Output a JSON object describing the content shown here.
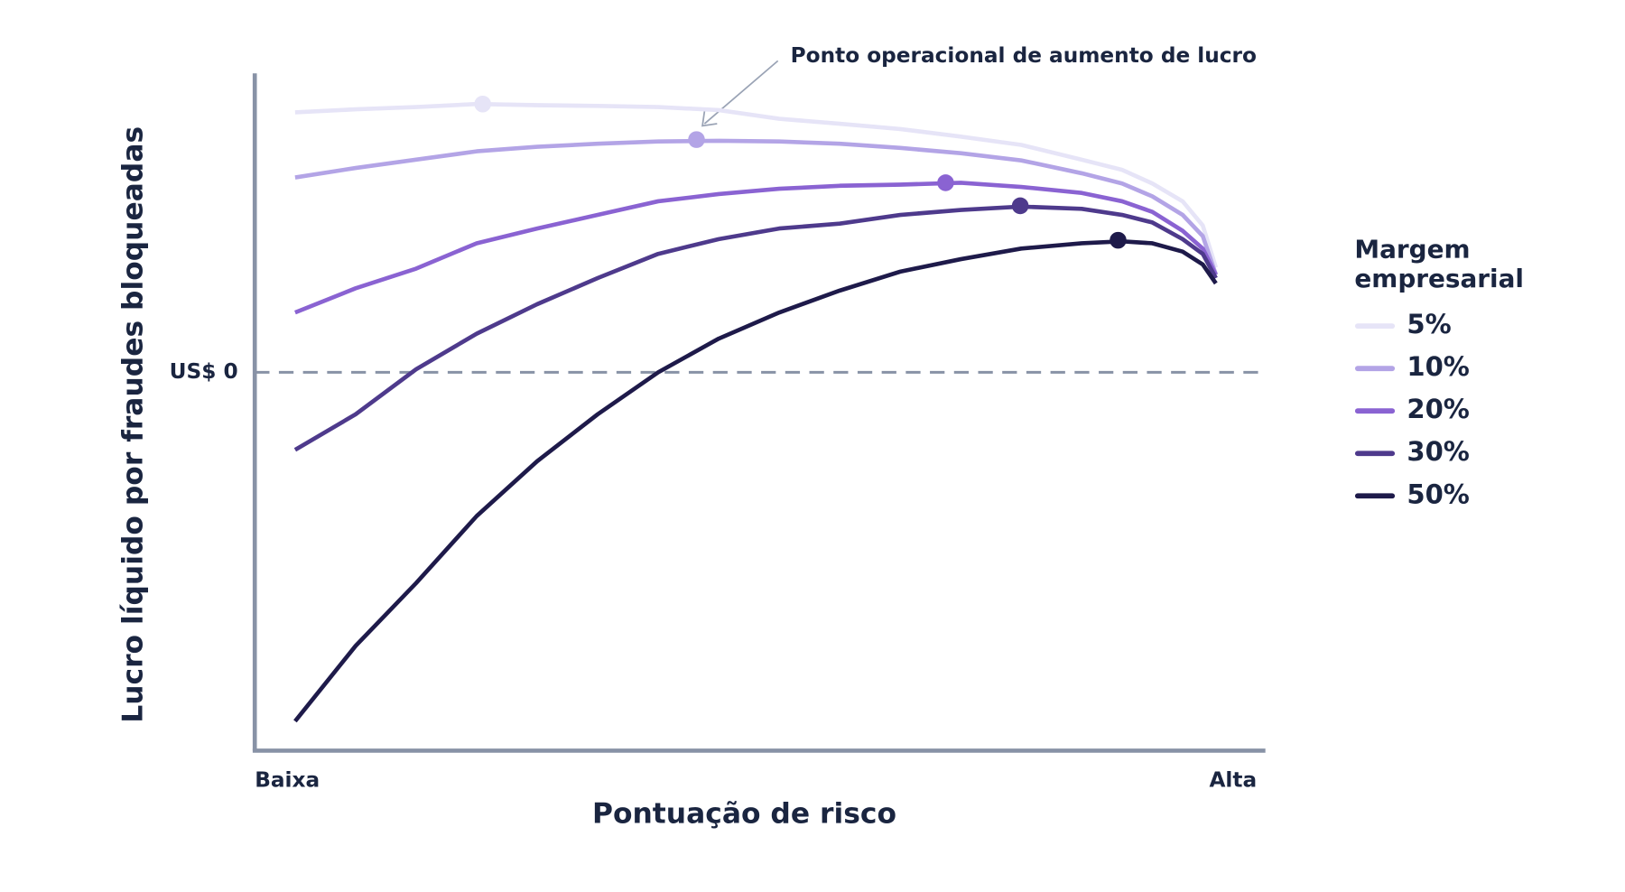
{
  "chart_data": {
    "type": "line",
    "annotation": "Ponto operacional de aumento de lucro",
    "xlabel": "Pontuação de risco",
    "ylabel": "Lucro líquido por fraudes bloqueadas",
    "legend_title": "Margem empresarial",
    "legend": "right",
    "xlim": [
      0,
      100
    ],
    "xticks": [
      {
        "value": 0,
        "label": "Baixa"
      },
      {
        "value": 97,
        "label": "Alta"
      }
    ],
    "ylim": [
      -100,
      79
    ],
    "yticks": [
      {
        "value": 0,
        "label": "US$ 0"
      }
    ],
    "grid": true,
    "x": [
      4,
      10,
      16,
      22,
      28,
      34,
      40,
      46,
      52,
      58,
      64,
      70,
      76,
      82,
      86,
      89,
      92,
      94,
      95.3
    ],
    "series": [
      {
        "name": "5%",
        "color": "#e6e4f7",
        "values": [
          68.7,
          69.5,
          70.1,
          70.9,
          70.6,
          70.4,
          70.1,
          69.3,
          67.0,
          65.7,
          64.3,
          62.3,
          60.1,
          56.2,
          53.5,
          49.9,
          45.2,
          38.8,
          27.7
        ],
        "peak": {
          "x": 22.6,
          "y": 70.9
        }
      },
      {
        "name": "10%",
        "color": "#b3a4e6",
        "values": [
          51.5,
          54.0,
          56.2,
          58.4,
          59.6,
          60.4,
          61.0,
          61.2,
          61.0,
          60.4,
          59.3,
          57.9,
          56.0,
          52.6,
          49.9,
          46.5,
          41.6,
          36.0,
          25.8
        ],
        "peak": {
          "x": 43.8,
          "y": 61.5
        }
      },
      {
        "name": "20%",
        "color": "#8a63d2",
        "values": [
          15.8,
          22.2,
          27.4,
          34.1,
          38.0,
          41.6,
          45.2,
          47.1,
          48.5,
          49.3,
          49.6,
          50.1,
          49.0,
          47.4,
          45.2,
          42.4,
          37.4,
          32.7,
          25.8
        ],
        "peak": {
          "x": 68.5,
          "y": 50.1
        }
      },
      {
        "name": "30%",
        "color": "#4e3a8c",
        "values": [
          -20.5,
          -11.1,
          0.8,
          10.2,
          18.0,
          24.9,
          31.3,
          35.2,
          38.0,
          39.3,
          41.6,
          42.9,
          43.8,
          43.2,
          41.6,
          39.6,
          35.2,
          31.3,
          24.9
        ],
        "peak": {
          "x": 75.9,
          "y": 44.0
        }
      },
      {
        "name": "50%",
        "color": "#1e1a4a",
        "values": [
          -92.2,
          -72.3,
          -55.7,
          -38.0,
          -23.5,
          -11.1,
          0,
          8.9,
          15.8,
          21.6,
          26.6,
          29.9,
          32.7,
          34.1,
          34.6,
          34.1,
          31.9,
          28.5,
          23.5
        ],
        "peak": {
          "x": 85.6,
          "y": 34.9
        }
      }
    ]
  }
}
